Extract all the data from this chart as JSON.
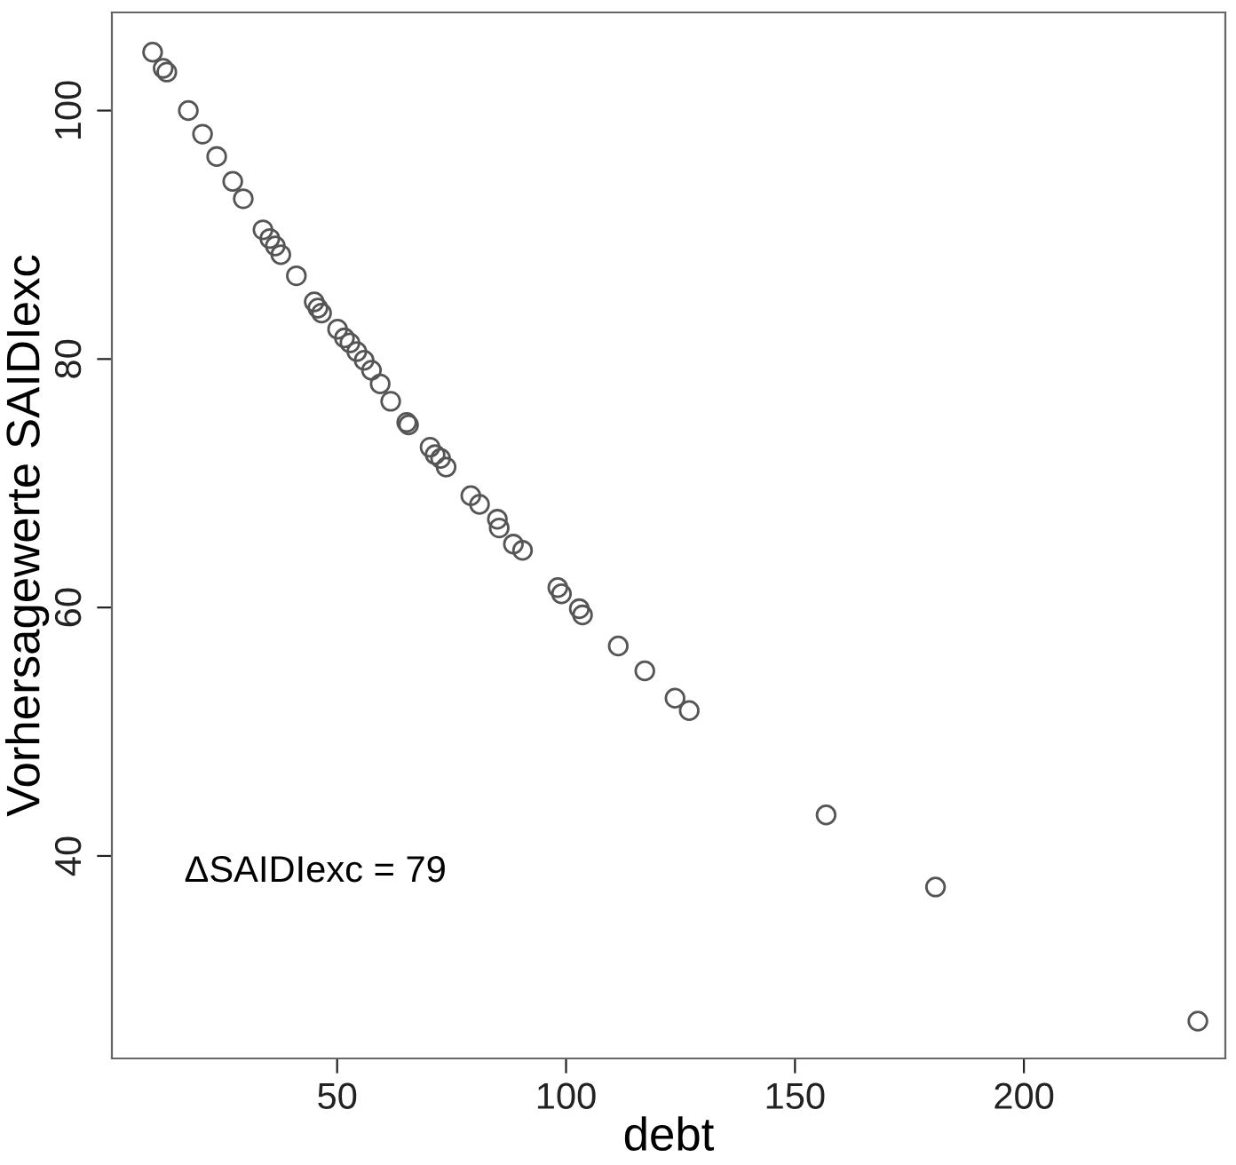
{
  "chart_data": {
    "type": "scatter",
    "xlabel": "debt",
    "ylabel": "Vorhersagewerte SAIDIexc",
    "annotations": [
      "ΔSAIDIexc = 79"
    ],
    "xlim": [
      0.8,
      244
    ],
    "ylim": [
      23.7,
      107.9
    ],
    "xticks": [
      50,
      100,
      150,
      200
    ],
    "yticks": [
      40,
      60,
      80,
      100
    ],
    "grid": false,
    "legend": false,
    "marker": "circle",
    "series": [
      {
        "color": "#555555",
        "x": [
          9.7,
          12.0,
          12.8,
          17.5,
          20.6,
          23.7,
          27.2,
          29.5,
          33.8,
          35.3,
          36.5,
          37.7,
          41.1,
          45.0,
          45.8,
          46.6,
          50.1,
          51.6,
          52.8,
          54.3,
          55.9,
          57.5,
          59.4,
          61.7,
          65.2,
          65.6,
          70.3,
          71.4,
          72.6,
          73.8,
          79.2,
          81.1,
          85.0,
          85.4,
          88.5,
          90.5,
          98.2,
          99.0,
          102.9,
          103.6,
          111.4,
          117.2,
          123.8,
          126.9,
          156.8,
          180.7,
          238.0
        ],
        "values": [
          104.7,
          103.4,
          103.1,
          100.0,
          98.1,
          96.3,
          94.3,
          92.9,
          90.4,
          89.7,
          89.1,
          88.4,
          86.7,
          84.6,
          84.1,
          83.7,
          82.4,
          81.7,
          81.3,
          80.6,
          79.9,
          79.1,
          78.0,
          76.6,
          74.9,
          74.7,
          72.9,
          72.3,
          72.0,
          71.3,
          69.0,
          68.3,
          67.1,
          66.4,
          65.1,
          64.6,
          61.6,
          61.1,
          59.9,
          59.4,
          56.9,
          54.9,
          52.7,
          51.7,
          43.3,
          37.5,
          26.7
        ]
      }
    ]
  }
}
